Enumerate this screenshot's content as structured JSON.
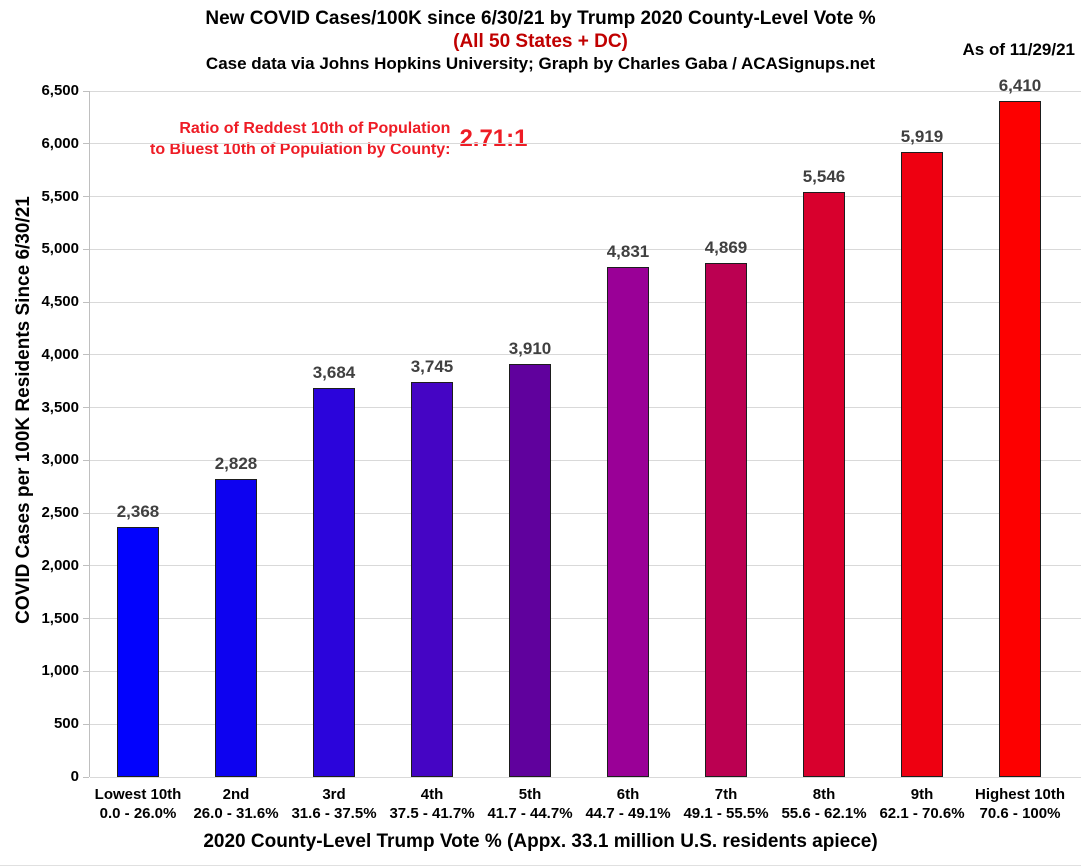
{
  "header": {
    "title": "New COVID Cases/100K since 6/30/21 by Trump 2020 County-Level Vote %",
    "subtitle": "(All 50 States + DC)",
    "credit": "Case data via Johns Hopkins University; Graph by Charles Gaba / ACASignups.net",
    "as_of": "As of 11/29/21"
  },
  "annotation": {
    "line1": "Ratio of Reddest 10th of Population",
    "line2": "to Bluest 10th of Population by County:",
    "ratio": "2.71:1"
  },
  "chart_data": {
    "type": "bar",
    "title": "New COVID Cases/100K since 6/30/21 by Trump 2020 County-Level Vote %",
    "subtitle": "(All 50 States + DC)",
    "categories": [
      "Lowest 10th",
      "2nd",
      "3rd",
      "4th",
      "5th",
      "6th",
      "7th",
      "8th",
      "9th",
      "Highest 10th"
    ],
    "category_ranges": [
      "0.0 - 26.0%",
      "26.0 - 31.6%",
      "31.6 - 37.5%",
      "37.5 - 41.7%",
      "41.7 - 44.7%",
      "44.7 - 49.1%",
      "49.1 - 55.5%",
      "55.6 - 62.1%",
      "62.1 - 70.6%",
      "70.6 - 100%"
    ],
    "values": [
      2368,
      2828,
      3684,
      3745,
      3910,
      4831,
      4869,
      5546,
      5919,
      6410
    ],
    "value_labels": [
      "2,368",
      "2,828",
      "3,684",
      "3,745",
      "3,910",
      "4,831",
      "4,869",
      "5,546",
      "5,919",
      "6,410"
    ],
    "bar_colors": [
      "#0202fd",
      "#0d02f0",
      "#2b04db",
      "#4505c4",
      "#60019d",
      "#9a0097",
      "#bb0051",
      "#d8002d",
      "#ee0011",
      "#fd0000"
    ],
    "xlabel": "2020 County-Level Trump Vote % (Appx. 33.1 million U.S. residents apiece)",
    "ylabel": "COVID Cases per 100K Residents Since 6/30/21",
    "ylim": [
      0,
      6500
    ],
    "yticks": [
      0,
      500,
      1000,
      1500,
      2000,
      2500,
      3000,
      3500,
      4000,
      4500,
      5000,
      5500,
      6000,
      6500
    ],
    "ytick_labels": [
      "0",
      "500",
      "1,000",
      "1,500",
      "2,000",
      "2,500",
      "3,000",
      "3,500",
      "4,000",
      "4,500",
      "5,000",
      "5,500",
      "6,000",
      "6,500"
    ],
    "grid": true,
    "legend": false
  },
  "colors": {
    "subtitle_red": "#c00000",
    "annotation_red": "#ee1c25",
    "value_label": "#404040",
    "gridline": "#d9d9d9",
    "axis_line": "#bfbfbf",
    "bar_border": "#1d1d1d"
  }
}
